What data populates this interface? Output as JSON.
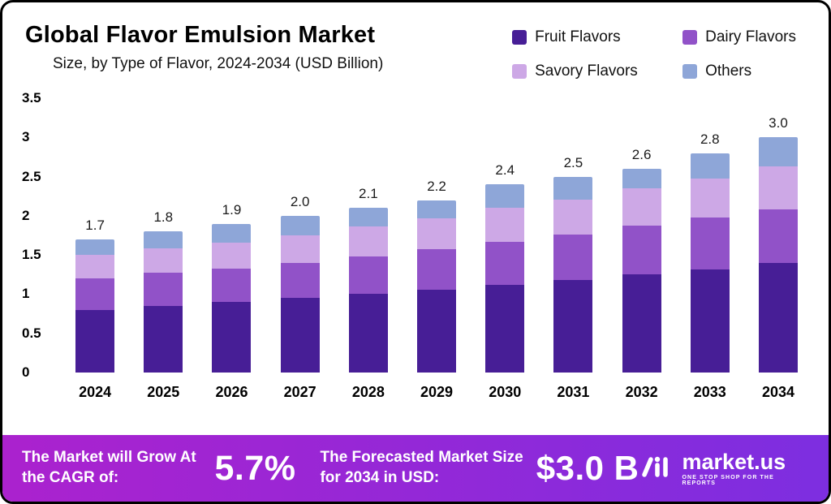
{
  "header": {
    "title": "Global Flavor Emulsion Market",
    "subtitle": "Size, by Type of Flavor, 2024-2034 (USD Billion)"
  },
  "chart_data": {
    "type": "bar",
    "stacked": true,
    "title": "Global Flavor Emulsion Market",
    "subtitle": "Size, by Type of Flavor, 2024-2034 (USD Billion)",
    "unit": "USD Billion",
    "categories": [
      "2024",
      "2025",
      "2026",
      "2027",
      "2028",
      "2029",
      "2030",
      "2031",
      "2032",
      "2033",
      "2034"
    ],
    "series": [
      {
        "name": "Fruit Flavors",
        "color": "#471E96",
        "values": [
          0.8,
          0.85,
          0.9,
          0.95,
          1.0,
          1.06,
          1.12,
          1.18,
          1.25,
          1.32,
          1.4
        ]
      },
      {
        "name": "Dairy Flavors",
        "color": "#9152C8",
        "values": [
          0.4,
          0.42,
          0.43,
          0.45,
          0.48,
          0.51,
          0.55,
          0.58,
          0.62,
          0.66,
          0.68
        ]
      },
      {
        "name": "Savory Flavors",
        "color": "#CDA8E6",
        "values": [
          0.3,
          0.31,
          0.33,
          0.35,
          0.38,
          0.4,
          0.43,
          0.45,
          0.48,
          0.5,
          0.55
        ]
      },
      {
        "name": "Others",
        "color": "#8EA6D8",
        "values": [
          0.2,
          0.22,
          0.24,
          0.25,
          0.24,
          0.23,
          0.3,
          0.29,
          0.25,
          0.32,
          0.37
        ]
      }
    ],
    "totals": [
      1.7,
      1.8,
      1.9,
      2.0,
      2.1,
      2.2,
      2.4,
      2.5,
      2.6,
      2.8,
      3.0
    ],
    "total_labels": [
      "1.7",
      "1.8",
      "1.9",
      "2.0",
      "2.1",
      "2.2",
      "2.4",
      "2.5",
      "2.6",
      "2.8",
      "3.0"
    ],
    "ylim": [
      0,
      3.5
    ],
    "yticks": [
      "3.5",
      "3",
      "2.5",
      "2",
      "1.5",
      "1",
      "0.5",
      "0"
    ],
    "grid": false,
    "legend_position": "top-right"
  },
  "banner": {
    "gradient_left": "#AB22CE",
    "gradient_right": "#7D2EE0",
    "cagr_label": "The Market will Grow At the CAGR of:",
    "cagr_value": "5.7%",
    "forecast_label": "The Forecasted Market Size for 2034 in USD:",
    "forecast_value": "$3.0 B",
    "brand": "market.us",
    "brand_tagline": "ONE STOP SHOP FOR THE REPORTS"
  }
}
